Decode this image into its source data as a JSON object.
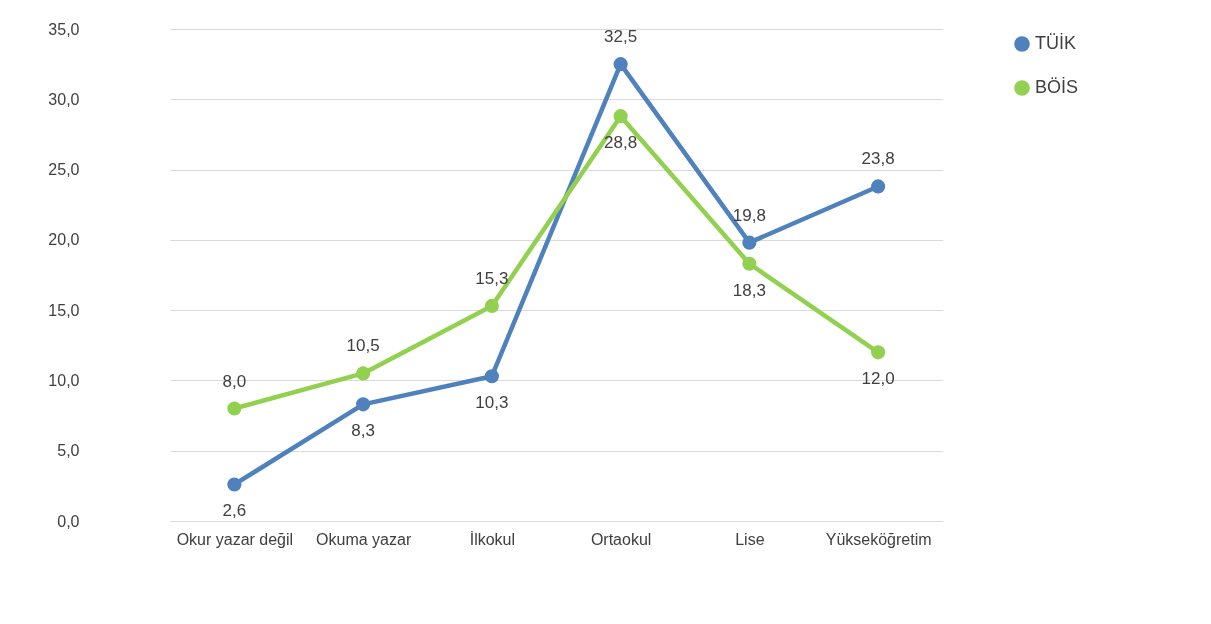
{
  "chart_data": {
    "type": "line",
    "categories": [
      "Okur yazar değil",
      "Okuma yazar",
      "İlkokul",
      "Ortaokul",
      "Lise",
      "Yükseköğretim"
    ],
    "series": [
      {
        "name": "TÜİK",
        "color": "#4f81bd",
        "values": [
          2.6,
          8.3,
          10.3,
          32.5,
          19.8,
          23.8
        ],
        "value_labels": [
          "2,6",
          "8,3",
          "10,3",
          "32,5",
          "19,8",
          "23,8"
        ]
      },
      {
        "name": "BÖİS",
        "color": "#92d050",
        "values": [
          8.0,
          10.5,
          15.3,
          28.8,
          18.3,
          12.0
        ],
        "value_labels": [
          "8,0",
          "10,5",
          "15,3",
          "28,8",
          "18,3",
          "12,0"
        ]
      }
    ],
    "ylim": [
      0,
      35
    ],
    "yticks": [
      {
        "value": 0,
        "label": "0,0"
      },
      {
        "value": 5,
        "label": "5,0"
      },
      {
        "value": 10,
        "label": "10,0"
      },
      {
        "value": 15,
        "label": "15,0"
      },
      {
        "value": 20,
        "label": "20,0"
      },
      {
        "value": 25,
        "label": "25,0"
      },
      {
        "value": 30,
        "label": "30,0"
      },
      {
        "value": 35,
        "label": "35,0"
      }
    ],
    "grid": "y",
    "legend": "top right",
    "marker": "circle",
    "line_style": "solid"
  }
}
